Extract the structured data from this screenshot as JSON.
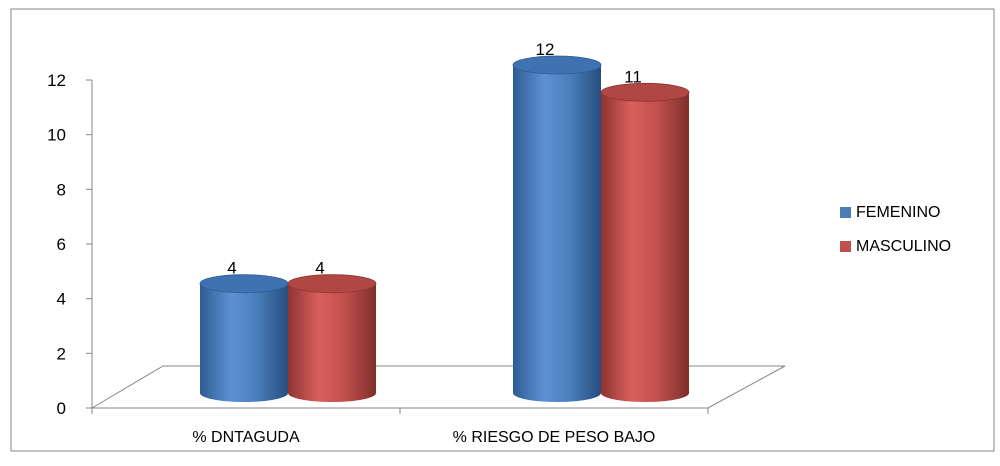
{
  "chart_data": {
    "type": "bar",
    "title": "",
    "xlabel": "",
    "ylabel": "",
    "categories": [
      "% DNTAGUDA",
      "% RIESGO DE PESO BAJO"
    ],
    "series": [
      {
        "name": "FEMENINO",
        "values": [
          4,
          12
        ],
        "color": "#4a7ebb"
      },
      {
        "name": "MASCULINO",
        "values": [
          4,
          11
        ],
        "color": "#c0504d"
      }
    ],
    "data_labels": [
      [
        "4",
        "12"
      ],
      [
        "4",
        "11"
      ]
    ],
    "ylim": [
      0,
      12
    ],
    "yticks": [
      "0",
      "2",
      "4",
      "6",
      "8",
      "10",
      "12"
    ],
    "grid": false,
    "legend_position": "right",
    "style": "3d-cylinder"
  }
}
